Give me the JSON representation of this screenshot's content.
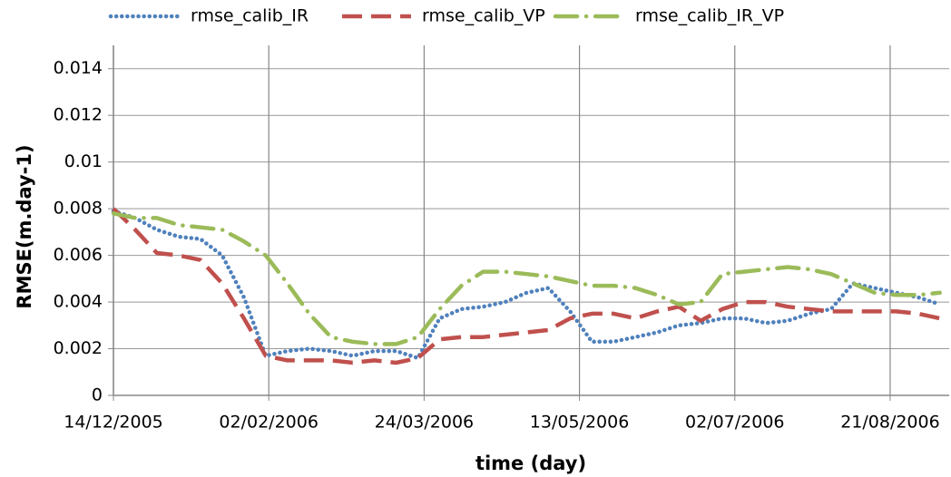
{
  "chart_data": {
    "type": "line",
    "x_label": "time (day)",
    "y_label": "RMSE(m.day-1)",
    "x": [
      "2005-12-14",
      "2005-12-21",
      "2005-12-28",
      "2006-01-04",
      "2006-01-11",
      "2006-01-18",
      "2006-01-25",
      "2006-02-01",
      "2006-02-08",
      "2006-02-15",
      "2006-02-22",
      "2006-03-01",
      "2006-03-08",
      "2006-03-15",
      "2006-03-22",
      "2006-03-29",
      "2006-04-05",
      "2006-04-12",
      "2006-04-19",
      "2006-04-26",
      "2006-05-03",
      "2006-05-10",
      "2006-05-17",
      "2006-05-24",
      "2006-05-31",
      "2006-06-07",
      "2006-06-14",
      "2006-06-21",
      "2006-06-28",
      "2006-07-05",
      "2006-07-12",
      "2006-07-19",
      "2006-07-26",
      "2006-08-02",
      "2006-08-09",
      "2006-08-16",
      "2006-08-23",
      "2006-08-30",
      "2006-09-06"
    ],
    "series": [
      {
        "name": "rmse_calib_IR",
        "color": "#4f81bd",
        "dash": "dot",
        "values": [
          0.0079,
          0.0076,
          0.0071,
          0.0068,
          0.0067,
          0.006,
          0.0042,
          0.0017,
          0.0019,
          0.002,
          0.0019,
          0.0017,
          0.0019,
          0.0019,
          0.0016,
          0.0033,
          0.0037,
          0.0038,
          0.004,
          0.0044,
          0.0046,
          0.0036,
          0.0023,
          0.0023,
          0.0025,
          0.0027,
          0.003,
          0.0031,
          0.0033,
          0.0033,
          0.0031,
          0.0032,
          0.0035,
          0.0037,
          0.0048,
          0.0046,
          0.0044,
          0.0042,
          0.0039
        ]
      },
      {
        "name": "rmse_calib_VP",
        "color": "#c0504d",
        "dash": "dash",
        "values": [
          0.008,
          0.0071,
          0.0061,
          0.006,
          0.0058,
          0.0048,
          0.0033,
          0.0017,
          0.0015,
          0.0015,
          0.0015,
          0.0014,
          0.0015,
          0.0014,
          0.0016,
          0.0024,
          0.0025,
          0.0025,
          0.0026,
          0.0027,
          0.0028,
          0.0033,
          0.0035,
          0.0035,
          0.0033,
          0.0036,
          0.0038,
          0.0032,
          0.0037,
          0.004,
          0.004,
          0.0038,
          0.0037,
          0.0036,
          0.0036,
          0.0036,
          0.0036,
          0.0035,
          0.0033
        ]
      },
      {
        "name": "rmse_calib_IR_VP",
        "color": "#9bbb59",
        "dash": "dashdot",
        "values": [
          0.0078,
          0.0076,
          0.0076,
          0.0073,
          0.0072,
          0.0071,
          0.0066,
          0.006,
          0.0048,
          0.0035,
          0.0025,
          0.0023,
          0.0022,
          0.0022,
          0.0025,
          0.0037,
          0.0047,
          0.0053,
          0.0053,
          0.0052,
          0.0051,
          0.0049,
          0.0047,
          0.0047,
          0.0046,
          0.0043,
          0.0039,
          0.004,
          0.0052,
          0.0053,
          0.0054,
          0.0055,
          0.0054,
          0.0052,
          0.0048,
          0.0044,
          0.0043,
          0.0043,
          0.0044
        ]
      }
    ],
    "xlim": [
      "2005-12-14",
      "2006-09-09"
    ],
    "xticks": [
      {
        "value": "2005-12-14",
        "label": "14/12/2005"
      },
      {
        "value": "2006-02-02",
        "label": "02/02/2006"
      },
      {
        "value": "2006-03-24",
        "label": "24/03/2006"
      },
      {
        "value": "2006-05-13",
        "label": "13/05/2006"
      },
      {
        "value": "2006-07-02",
        "label": "02/07/2006"
      },
      {
        "value": "2006-08-21",
        "label": "21/08/2006"
      }
    ],
    "ylim": [
      0,
      0.015
    ],
    "yticks": [
      0,
      0.002,
      0.004,
      0.006,
      0.008,
      0.01,
      0.012,
      0.014
    ],
    "grid": true,
    "legend": "top"
  }
}
